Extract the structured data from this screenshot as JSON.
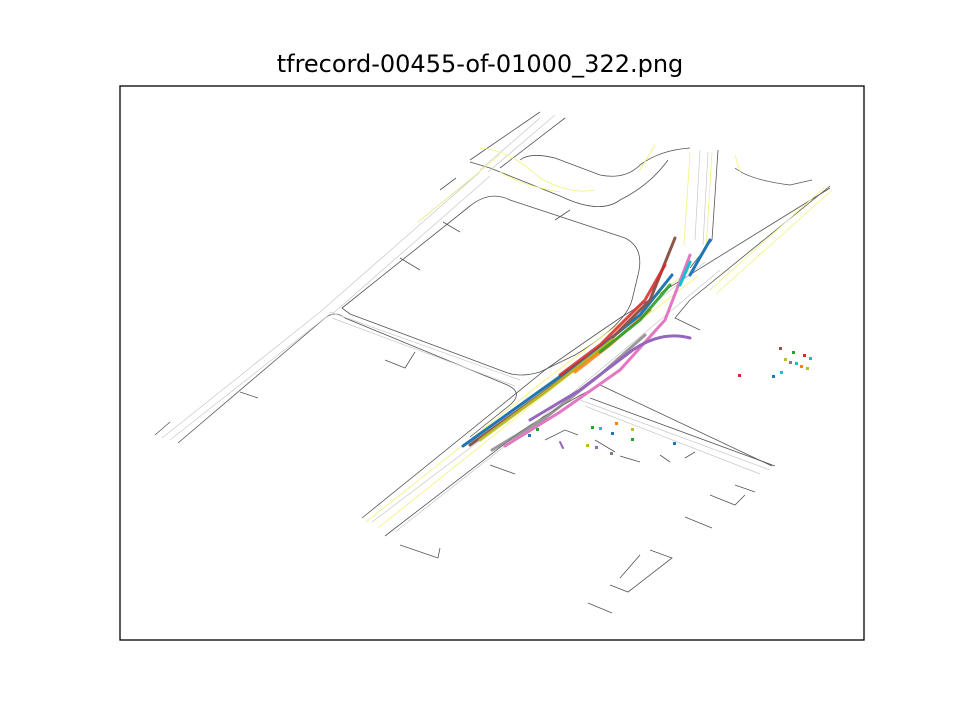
{
  "figure": {
    "title": "tfrecord-00455-of-01000_322.png"
  },
  "colors": {
    "frame": "#000000",
    "road_edge": "#4d4d4d",
    "lane_line": "#c8c8c8",
    "center_line": "#f5f57a",
    "tracks": [
      "#1f77b4",
      "#ff7f0e",
      "#2ca02c",
      "#d62728",
      "#9467bd",
      "#8c564b",
      "#e377c2",
      "#7f7f7f",
      "#bcbd22",
      "#17becf"
    ]
  }
}
